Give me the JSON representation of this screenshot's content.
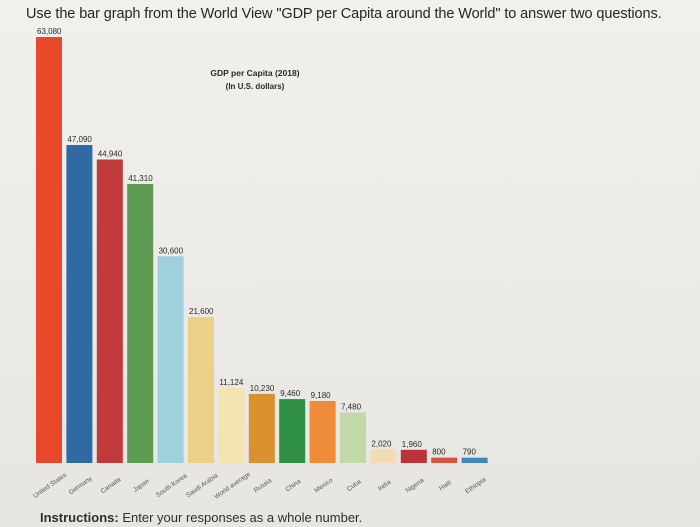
{
  "question": {
    "text": "Use the bar graph from the World View \"GDP per Capita around the World\" to answer two questions."
  },
  "instructions": {
    "label": "Instructions:",
    "text": "Enter your responses as a whole number."
  },
  "chart_data": {
    "type": "bar",
    "title": "GDP per Capita (2018)",
    "subtitle": "(In U.S. dollars)",
    "xlabel": "",
    "ylabel": "",
    "ylim": [
      0,
      63080
    ],
    "grid": false,
    "categories": [
      "United States",
      "Germany",
      "Canada",
      "Japan",
      "South Korea",
      "Saudi Arabia",
      "World average",
      "Russia",
      "China",
      "Mexico",
      "Cuba",
      "India",
      "Nigeria",
      "Haiti",
      "Ethiopia"
    ],
    "values": [
      63080,
      47090,
      44940,
      41310,
      30600,
      21600,
      11124,
      10230,
      9460,
      9180,
      7480,
      2020,
      1960,
      800,
      790
    ],
    "value_labels": [
      "63,080",
      "47,090",
      "44,940",
      "41,310",
      "30,600",
      "21,600",
      "11,124",
      "10,230",
      "9,460",
      "9,180",
      "7,480",
      "2,020",
      "1,960",
      "800",
      "790"
    ],
    "colors": [
      "#e8492a",
      "#2f6aa3",
      "#c0393b",
      "#5e9a52",
      "#9fd1dc",
      "#ecd088",
      "#f4e4b2",
      "#d99130",
      "#2f8f45",
      "#ef8c3a",
      "#c3d8a8",
      "#f1dcb4",
      "#b8343a",
      "#d7553c",
      "#3f86c4"
    ]
  }
}
